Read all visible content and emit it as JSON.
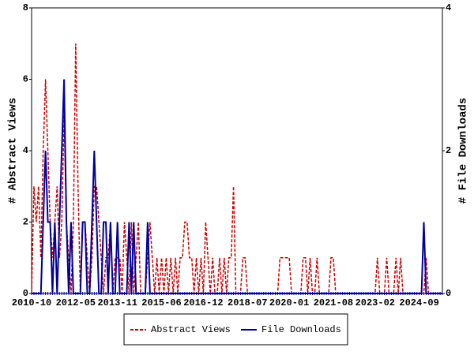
{
  "chart_data": {
    "type": "line",
    "categories": [
      "2010-10",
      null,
      null,
      null,
      null,
      null,
      null,
      null,
      null,
      null,
      null,
      null,
      null,
      null,
      null,
      null,
      null,
      null,
      null,
      "2012-05",
      null,
      null,
      null,
      null,
      null,
      null,
      null,
      null,
      null,
      null,
      null,
      null,
      null,
      null,
      null,
      null,
      null,
      "2013-11",
      null,
      null,
      null,
      null,
      null,
      null,
      null,
      null,
      null,
      null,
      null,
      null,
      null,
      null,
      null,
      null,
      null,
      null,
      "2015-06",
      null,
      null,
      null,
      null,
      null,
      null,
      null,
      null,
      null,
      null,
      null,
      null,
      null,
      null,
      null,
      null,
      null,
      "2016-12",
      null,
      null,
      null,
      null,
      null,
      null,
      null,
      null,
      null,
      null,
      null,
      null,
      null,
      null,
      null,
      null,
      null,
      null,
      "2018-07",
      null,
      null,
      null,
      null,
      null,
      null,
      null,
      null,
      null,
      null,
      null,
      null,
      null,
      null,
      null,
      null,
      null,
      "2020-01",
      null,
      null,
      null,
      null,
      null,
      null,
      null,
      null,
      null,
      null,
      null,
      null,
      null,
      null,
      null,
      null,
      null,
      null,
      "2021-08",
      null,
      null,
      null,
      null,
      null,
      null,
      null,
      null,
      null,
      null,
      null,
      null,
      null,
      null,
      null,
      null,
      null,
      "2023-02",
      null,
      null,
      null,
      null,
      null,
      null,
      null,
      null,
      null,
      null,
      null,
      null,
      null,
      null,
      null,
      null,
      null,
      null,
      "2024-09",
      null,
      null,
      null,
      null,
      null,
      null,
      null,
      null,
      null,
      null
    ],
    "series": [
      {
        "name": "Abstract Views",
        "color": "#cc0000",
        "dashed": true,
        "values": [
          0,
          3,
          2,
          3,
          1,
          4,
          6,
          4,
          2,
          1,
          2,
          3,
          1,
          2,
          5,
          2,
          1,
          0,
          2,
          7,
          3,
          0,
          2,
          2,
          1,
          0,
          1,
          3,
          3,
          2,
          1,
          0,
          1,
          1,
          2,
          0,
          1,
          1,
          1,
          0,
          2,
          1,
          0,
          2,
          0,
          1,
          2,
          0,
          0,
          0,
          1,
          2,
          1,
          0,
          1,
          0,
          1,
          0,
          1,
          0,
          1,
          0,
          1,
          0,
          1,
          1,
          2,
          2,
          1,
          1,
          0,
          1,
          0,
          1,
          0,
          2,
          1,
          0,
          1,
          0,
          0,
          1,
          0,
          1,
          0,
          1,
          1,
          3,
          0,
          0,
          0,
          1,
          1,
          0,
          0,
          0,
          0,
          0,
          0,
          0,
          0,
          0,
          0,
          0,
          0,
          0,
          0,
          1,
          1,
          1,
          1,
          1,
          0,
          0,
          0,
          0,
          0,
          1,
          1,
          0,
          1,
          0,
          0,
          1,
          0,
          0,
          0,
          0,
          0,
          1,
          1,
          0,
          0,
          0,
          0,
          0,
          0,
          0,
          0,
          0,
          0,
          0,
          0,
          0,
          0,
          0,
          0,
          0,
          0,
          1,
          0,
          0,
          0,
          1,
          0,
          0,
          0,
          1,
          0,
          1,
          0,
          0,
          0,
          0,
          0,
          0,
          0,
          0,
          0,
          0,
          1,
          0,
          0,
          0,
          0,
          0,
          0,
          0
        ]
      },
      {
        "name": "File Downloads",
        "color": "#00009c",
        "dashed": false,
        "axis": "y2",
        "values": [
          0,
          0,
          0,
          0,
          0,
          1,
          2,
          1,
          1,
          0,
          1,
          0,
          1,
          2,
          3,
          1,
          0,
          1,
          0,
          0,
          0,
          0,
          1,
          1,
          0,
          0,
          1,
          2,
          1,
          0,
          0,
          1,
          1,
          0,
          1,
          0,
          0,
          1,
          0,
          0,
          0,
          0,
          1,
          0,
          1,
          0,
          0,
          0,
          0,
          0,
          1,
          0,
          0,
          0,
          0,
          0,
          0,
          0,
          0,
          0,
          0,
          0,
          0,
          0,
          0,
          0,
          0,
          0,
          0,
          0,
          0,
          0,
          0,
          0,
          0,
          0,
          0,
          0,
          0,
          0,
          0,
          0,
          0,
          0,
          0,
          0,
          0,
          0,
          0,
          0,
          0,
          0,
          0,
          0,
          0,
          0,
          0,
          0,
          0,
          0,
          0,
          0,
          0,
          0,
          0,
          0,
          0,
          0,
          0,
          0,
          0,
          0,
          0,
          0,
          0,
          0,
          0,
          0,
          0,
          0,
          0,
          0,
          0,
          0,
          0,
          0,
          0,
          0,
          0,
          0,
          0,
          0,
          0,
          0,
          0,
          0,
          0,
          0,
          0,
          0,
          0,
          0,
          0,
          0,
          0,
          0,
          0,
          0,
          0,
          0,
          0,
          0,
          0,
          0,
          0,
          0,
          0,
          0,
          0,
          0,
          0,
          0,
          0,
          0,
          0,
          0,
          0,
          0,
          0,
          1,
          0,
          0,
          0,
          0,
          0,
          0,
          0,
          0
        ]
      }
    ],
    "ylabel": "# Abstract Views",
    "y2label": "# File Downloads",
    "ylim": [
      0,
      8
    ],
    "yticks": [
      0,
      2,
      4,
      6,
      8
    ],
    "y2lim": [
      0,
      4
    ],
    "y2ticks": [
      0,
      2,
      4
    ],
    "legend": "bottom"
  }
}
